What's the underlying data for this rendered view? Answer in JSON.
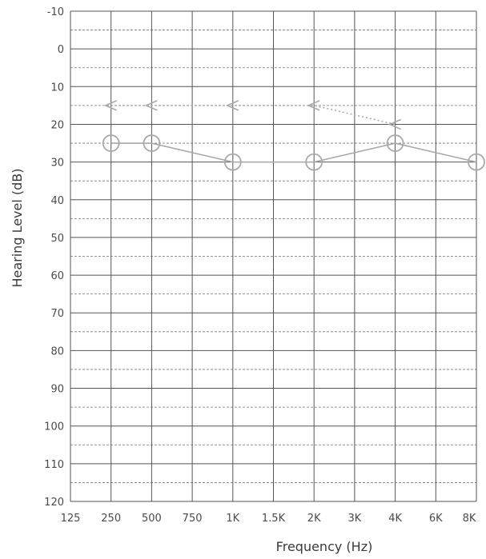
{
  "chart_data": {
    "type": "line",
    "xlabel": "Frequency (Hz)",
    "ylabel": "Hearing Level (dB)",
    "x_ticks": [
      "125",
      "250",
      "500",
      "750",
      "1K",
      "1.5K",
      "2K",
      "3K",
      "4K",
      "6K",
      "8K"
    ],
    "y_ticks": [
      "-10",
      "0",
      "10",
      "20",
      "30",
      "40",
      "50",
      "60",
      "70",
      "80",
      "90",
      "100",
      "110",
      "120"
    ],
    "ylim": [
      -10,
      120
    ],
    "y_inverted": true,
    "grid": true,
    "series": [
      {
        "marker": "circle",
        "style": "solid",
        "points": [
          {
            "x": "250",
            "y": 25
          },
          {
            "x": "500",
            "y": 25
          },
          {
            "x": "1K",
            "y": 30
          },
          {
            "x": "2K",
            "y": 30
          },
          {
            "x": "4K",
            "y": 25
          },
          {
            "x": "8K",
            "y": 30
          }
        ]
      },
      {
        "marker": "left-arrow",
        "style": "dotted",
        "points": [
          {
            "x": "250",
            "y": 15
          },
          {
            "x": "500",
            "y": 15
          },
          {
            "x": "1K",
            "y": 15
          },
          {
            "x": "2K",
            "y": 15
          },
          {
            "x": "4K",
            "y": 20
          }
        ]
      }
    ],
    "colors": {
      "grid_major": "#555555",
      "grid_minor": "#777777",
      "series": "#a9a9a9",
      "text": "#4a4a4a"
    }
  }
}
